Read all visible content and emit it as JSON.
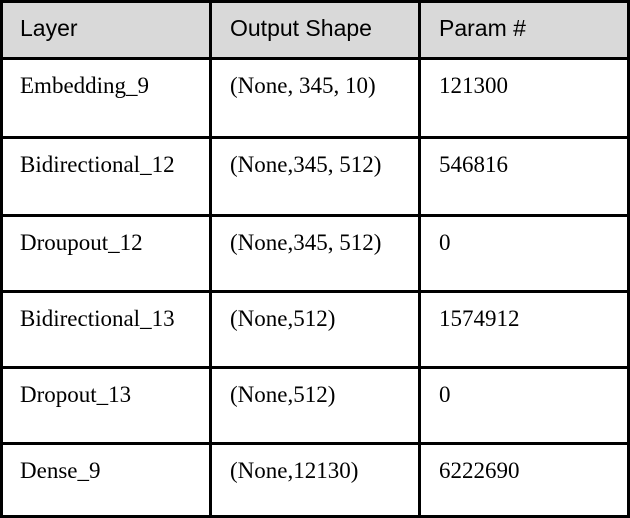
{
  "table": {
    "header": {
      "layer": "Layer",
      "output_shape": "Output Shape",
      "params": "Param #"
    },
    "rows": [
      {
        "layer": "Embedding_9",
        "output_shape": "(None, 345, 10)",
        "params": "121300"
      },
      {
        "layer": "Bidirectional_12",
        "output_shape": "(None,345, 512)",
        "params": "546816"
      },
      {
        "layer": "Droupout_12",
        "output_shape": "(None,345, 512)",
        "params": "0"
      },
      {
        "layer": "Bidirectional_13",
        "output_shape": "(None,512)",
        "params": "1574912"
      },
      {
        "layer": "Dropout_13",
        "output_shape": "(None,512)",
        "params": "0"
      },
      {
        "layer": "Dense_9",
        "output_shape": "(None,12130)",
        "params": "6222690"
      }
    ]
  }
}
